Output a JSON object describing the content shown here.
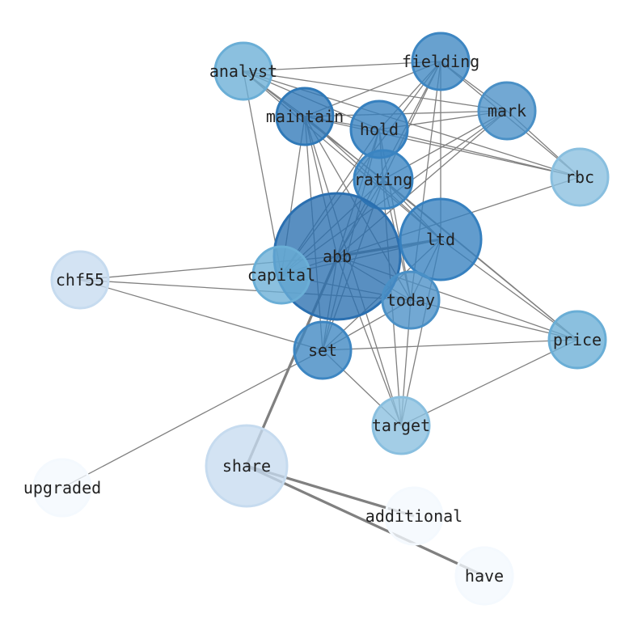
{
  "graph": {
    "type": "network",
    "edge_color": "#808080",
    "nodes": [
      {
        "id": "analyst",
        "color": "#6aaed6"
      },
      {
        "id": "fielding",
        "color": "#3d86c2"
      },
      {
        "id": "mark",
        "color": "#4a90c6"
      },
      {
        "id": "maintain",
        "color": "#2f79b8"
      },
      {
        "id": "hold",
        "color": "#3680bf"
      },
      {
        "id": "rating",
        "color": "#3a84c1"
      },
      {
        "id": "rbc",
        "color": "#89bfdf"
      },
      {
        "id": "abb",
        "color": "#2a6fb0"
      },
      {
        "id": "ltd",
        "color": "#3680bf"
      },
      {
        "id": "capital",
        "color": "#6aaed6"
      },
      {
        "id": "chf55",
        "color": "#c6dbef"
      },
      {
        "id": "today",
        "color": "#4a90c6"
      },
      {
        "id": "set",
        "color": "#3d86c2"
      },
      {
        "id": "price",
        "color": "#6aaed6"
      },
      {
        "id": "target",
        "color": "#89bfdf"
      },
      {
        "id": "share",
        "color": "#c6dbef"
      },
      {
        "id": "upgraded",
        "color": "#f4f9fe"
      },
      {
        "id": "additional",
        "color": "#f4f9fe"
      },
      {
        "id": "have",
        "color": "#f4f9fe"
      }
    ],
    "edges": [
      [
        "analyst",
        "fielding",
        1
      ],
      [
        "analyst",
        "mark",
        1
      ],
      [
        "analyst",
        "rbc",
        1
      ],
      [
        "analyst",
        "hold",
        1
      ],
      [
        "analyst",
        "rating",
        1
      ],
      [
        "analyst",
        "capital",
        1
      ],
      [
        "analyst",
        "maintain",
        1
      ],
      [
        "analyst",
        "ltd",
        1
      ],
      [
        "fielding",
        "maintain",
        1
      ],
      [
        "fielding",
        "hold",
        1
      ],
      [
        "fielding",
        "rating",
        1
      ],
      [
        "fielding",
        "abb",
        1
      ],
      [
        "fielding",
        "capital",
        1
      ],
      [
        "fielding",
        "ltd",
        1
      ],
      [
        "fielding",
        "mark",
        1
      ],
      [
        "fielding",
        "rbc",
        1
      ],
      [
        "fielding",
        "today",
        1
      ],
      [
        "mark",
        "maintain",
        1
      ],
      [
        "mark",
        "hold",
        1
      ],
      [
        "mark",
        "rbc",
        1
      ],
      [
        "mark",
        "rating",
        1
      ],
      [
        "mark",
        "capital",
        1
      ],
      [
        "mark",
        "abb",
        1
      ],
      [
        "maintain",
        "abb",
        1
      ],
      [
        "maintain",
        "capital",
        1
      ],
      [
        "maintain",
        "set",
        1
      ],
      [
        "maintain",
        "target",
        1
      ],
      [
        "maintain",
        "ltd",
        1
      ],
      [
        "maintain",
        "today",
        1
      ],
      [
        "maintain",
        "hold",
        1
      ],
      [
        "maintain",
        "rbc",
        1
      ],
      [
        "maintain",
        "price",
        1
      ],
      [
        "hold",
        "abb",
        1
      ],
      [
        "hold",
        "set",
        1
      ],
      [
        "hold",
        "capital",
        1
      ],
      [
        "hold",
        "rating",
        1
      ],
      [
        "hold",
        "today",
        1
      ],
      [
        "hold",
        "target",
        1
      ],
      [
        "hold",
        "rbc",
        1
      ],
      [
        "rating",
        "abb",
        1
      ],
      [
        "rating",
        "set",
        1
      ],
      [
        "rating",
        "today",
        1
      ],
      [
        "rating",
        "ltd",
        1
      ],
      [
        "rating",
        "price",
        1
      ],
      [
        "rating",
        "capital",
        1
      ],
      [
        "rbc",
        "abb",
        1
      ],
      [
        "abb",
        "ltd",
        2.5
      ],
      [
        "abb",
        "share",
        2.5
      ],
      [
        "abb",
        "capital",
        1
      ],
      [
        "abb",
        "today",
        1
      ],
      [
        "abb",
        "price",
        1
      ],
      [
        "abb",
        "target",
        1
      ],
      [
        "abb",
        "set",
        1
      ],
      [
        "abb",
        "chf55",
        1
      ],
      [
        "ltd",
        "capital",
        1
      ],
      [
        "ltd",
        "set",
        1
      ],
      [
        "ltd",
        "today",
        1
      ],
      [
        "ltd",
        "target",
        1
      ],
      [
        "ltd",
        "price",
        1
      ],
      [
        "chf55",
        "today",
        1
      ],
      [
        "chf55",
        "set",
        1
      ],
      [
        "today",
        "set",
        1
      ],
      [
        "today",
        "target",
        1
      ],
      [
        "today",
        "price",
        1
      ],
      [
        "today",
        "capital",
        1
      ],
      [
        "set",
        "price",
        1
      ],
      [
        "set",
        "target",
        1
      ],
      [
        "set",
        "upgraded",
        1
      ],
      [
        "target",
        "price",
        1
      ],
      [
        "share",
        "additional",
        2.5
      ],
      [
        "share",
        "have",
        2.5
      ]
    ]
  }
}
